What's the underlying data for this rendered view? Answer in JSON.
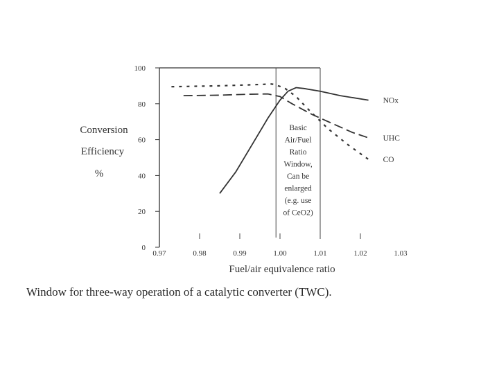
{
  "chart_data": {
    "type": "line",
    "title": "",
    "ylabel": [
      "Conversion",
      "Efficiency",
      "%"
    ],
    "xlabel": "Fuel/air equivalence ratio",
    "xlim": [
      0.97,
      1.03
    ],
    "ylim": [
      0,
      100
    ],
    "xticks": [
      0.97,
      0.98,
      0.99,
      1.0,
      1.01,
      1.02,
      1.03
    ],
    "xtick_labels": [
      "0.97",
      "0.98",
      "0.99",
      "1.00",
      "1.01",
      "1.02",
      "1.03"
    ],
    "yticks": [
      0,
      20,
      40,
      60,
      80,
      100
    ],
    "ytick_labels": [
      "0",
      "20",
      "40",
      "60",
      "80",
      "100"
    ],
    "grid": false,
    "series": [
      {
        "name": "NOx",
        "style": "solid",
        "x": [
          0.985,
          0.989,
          0.993,
          0.997,
          1.0,
          1.002,
          1.004,
          1.006,
          1.01,
          1.015,
          1.022
        ],
        "y": [
          30,
          42,
          57,
          72,
          82,
          87,
          89,
          88.5,
          87,
          84.5,
          82
        ]
      },
      {
        "name": "UHC",
        "style": "dashed",
        "x": [
          0.976,
          0.985,
          0.992,
          0.997,
          1.0,
          1.003,
          1.008,
          1.013,
          1.018,
          1.022
        ],
        "y": [
          84.5,
          84.8,
          85.3,
          85.5,
          84,
          80,
          74,
          69,
          64,
          61
        ]
      },
      {
        "name": "CO",
        "style": "dotted",
        "x": [
          0.973,
          0.985,
          0.992,
          0.998,
          1.001,
          1.004,
          1.007,
          1.012,
          1.017,
          1.022
        ],
        "y": [
          89.5,
          90,
          90.5,
          91,
          89,
          84,
          77,
          66,
          57,
          49
        ]
      }
    ],
    "window": {
      "x_range": [
        0.999,
        1.01
      ],
      "annotation": [
        "Basic",
        "Air/Fuel",
        "Ratio",
        "Window,",
        "Can be",
        "enlarged",
        "(e.g. use",
        "of CeO2)"
      ]
    }
  },
  "caption": "Window for three-way operation of a catalytic converter (TWC)."
}
